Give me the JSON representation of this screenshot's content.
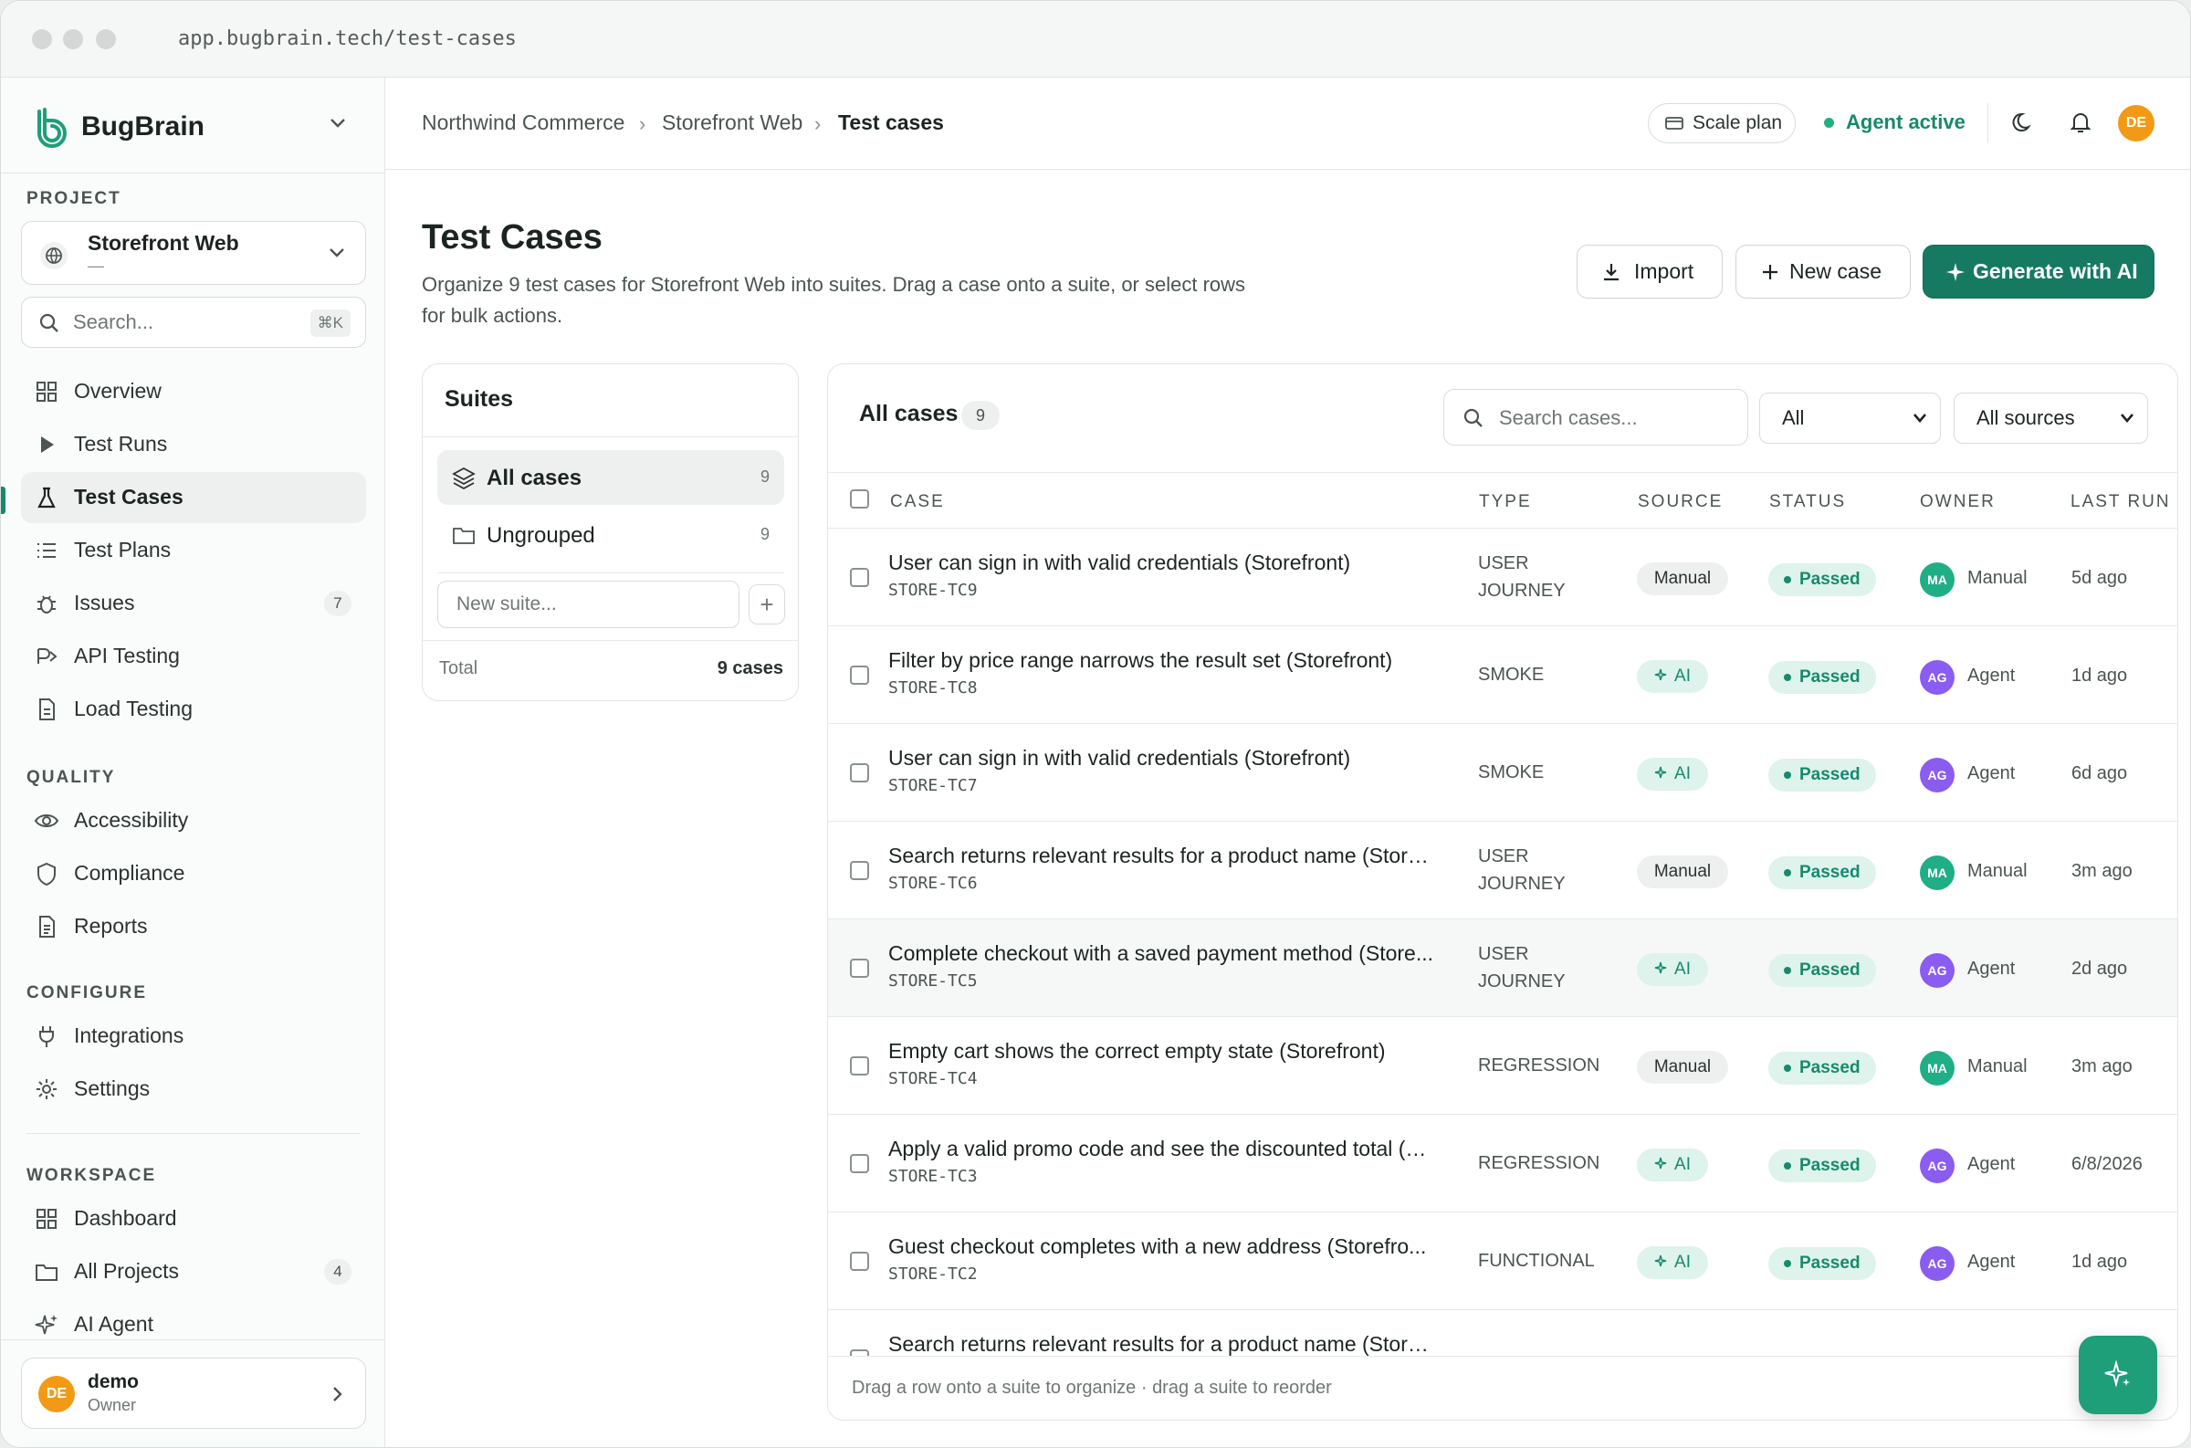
{
  "browser": {
    "url": "app.bugbrain.tech/test-cases"
  },
  "brand": {
    "name": "BugBrain"
  },
  "sidebar": {
    "project_label": "PROJECT",
    "project_name": "Storefront Web",
    "project_sub": "—",
    "search_placeholder": "Search...",
    "search_shortcut": "⌘K",
    "main_items": [
      {
        "label": "Overview",
        "icon": "grid-icon"
      },
      {
        "label": "Test Runs",
        "icon": "play-icon"
      },
      {
        "label": "Test Cases",
        "icon": "flask-icon",
        "active": true
      },
      {
        "label": "Test Plans",
        "icon": "list-icon"
      },
      {
        "label": "Issues",
        "icon": "bug-icon",
        "badge": "7"
      },
      {
        "label": "API Testing",
        "icon": "api-icon"
      },
      {
        "label": "Load Testing",
        "icon": "file-icon"
      }
    ],
    "quality_label": "QUALITY",
    "quality_items": [
      {
        "label": "Accessibility",
        "icon": "eye-icon"
      },
      {
        "label": "Compliance",
        "icon": "shield-icon"
      },
      {
        "label": "Reports",
        "icon": "report-icon"
      }
    ],
    "configure_label": "CONFIGURE",
    "configure_items": [
      {
        "label": "Integrations",
        "icon": "plug-icon"
      },
      {
        "label": "Settings",
        "icon": "gear-icon"
      }
    ],
    "workspace_label": "WORKSPACE",
    "workspace_items": [
      {
        "label": "Dashboard",
        "icon": "grid-icon"
      },
      {
        "label": "All Projects",
        "icon": "folder-icon",
        "badge": "4"
      },
      {
        "label": "AI Agent",
        "icon": "sparkle-icon"
      }
    ],
    "user": {
      "initials": "DE",
      "name": "demo",
      "role": "Owner"
    }
  },
  "topbar": {
    "breadcrumb": [
      "Northwind Commerce",
      "Storefront Web",
      "Test cases"
    ],
    "plan": "Scale plan",
    "agent_status": "Agent active",
    "avatar_initials": "DE"
  },
  "page": {
    "title": "Test Cases",
    "description": "Organize 9 test cases for Storefront Web into suites. Drag a case onto a suite, or select rows for bulk actions.",
    "import_label": "Import",
    "new_case_label": "New case",
    "generate_label": "Generate with AI"
  },
  "suites": {
    "title": "Suites",
    "items": [
      {
        "label": "All cases",
        "count": "9",
        "active": true
      },
      {
        "label": "Ungrouped",
        "count": "9"
      }
    ],
    "new_placeholder": "New suite...",
    "add_symbol": "+",
    "total_label": "Total",
    "total_value": "9 cases"
  },
  "cases": {
    "title": "All cases",
    "count": "9",
    "search_placeholder": "Search cases...",
    "filter_type": "All",
    "filter_source": "All sources",
    "columns": [
      "CASE",
      "TYPE",
      "SOURCE",
      "STATUS",
      "OWNER",
      "LAST RUN"
    ],
    "rows": [
      {
        "title": "User can sign in with valid credentials (Storefront)",
        "code": "STORE-TC9",
        "type": "USER JOURNEY",
        "source": "Manual",
        "status": "Passed",
        "owner_initials": "MA",
        "owner": "Manual",
        "last_run": "5d ago"
      },
      {
        "title": "Filter by price range narrows the result set (Storefront)",
        "code": "STORE-TC8",
        "type": "SMOKE",
        "source": "AI",
        "status": "Passed",
        "owner_initials": "AG",
        "owner": "Agent",
        "last_run": "1d ago"
      },
      {
        "title": "User can sign in with valid credentials (Storefront)",
        "code": "STORE-TC7",
        "type": "SMOKE",
        "source": "AI",
        "status": "Passed",
        "owner_initials": "AG",
        "owner": "Agent",
        "last_run": "6d ago"
      },
      {
        "title": "Search returns relevant results for a product name (Storef...",
        "code": "STORE-TC6",
        "type": "USER JOURNEY",
        "source": "Manual",
        "status": "Passed",
        "owner_initials": "MA",
        "owner": "Manual",
        "last_run": "3m ago"
      },
      {
        "title": "Complete checkout with a saved payment method (Store...",
        "code": "STORE-TC5",
        "type": "USER JOURNEY",
        "source": "AI",
        "status": "Passed",
        "owner_initials": "AG",
        "owner": "Agent",
        "last_run": "2d ago"
      },
      {
        "title": "Empty cart shows the correct empty state (Storefront)",
        "code": "STORE-TC4",
        "type": "REGRESSION",
        "source": "Manual",
        "status": "Passed",
        "owner_initials": "MA",
        "owner": "Manual",
        "last_run": "3m ago"
      },
      {
        "title": "Apply a valid promo code and see the discounted total (S...",
        "code": "STORE-TC3",
        "type": "REGRESSION",
        "source": "AI",
        "status": "Passed",
        "owner_initials": "AG",
        "owner": "Agent",
        "last_run": "6/8/2026"
      },
      {
        "title": "Guest checkout completes with a new address (Storefro...",
        "code": "STORE-TC2",
        "type": "FUNCTIONAL",
        "source": "AI",
        "status": "Passed",
        "owner_initials": "AG",
        "owner": "Agent",
        "last_run": "1d ago"
      },
      {
        "title": "Search returns relevant results for a product name (Storef...",
        "code": "",
        "type": "",
        "source": "",
        "status": "",
        "owner_initials": "",
        "owner": "",
        "last_run": ""
      }
    ],
    "footer_hint": "Drag a row onto a suite to organize · drag a suite to reorder"
  },
  "colors": {
    "accent": "#167a63",
    "success": "#178a6c",
    "owner_manual": "#1fae86",
    "owner_agent": "#8a5cf0",
    "avatar": "#f29a16"
  }
}
